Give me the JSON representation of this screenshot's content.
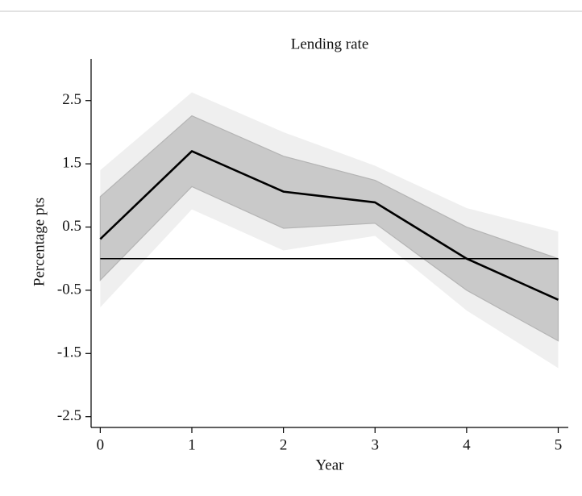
{
  "chart_data": {
    "type": "line",
    "title": "Lending rate",
    "x_label": "Year",
    "y_label": "Percentage pts",
    "x": [
      0,
      1,
      2,
      3,
      4,
      5
    ],
    "series": [
      {
        "color": "#000000",
        "values": [
          0.31,
          1.7,
          1.06,
          0.89,
          0,
          -0.65
        ]
      }
    ],
    "bands": [
      {
        "color": "#efefef",
        "lower": [
          -0.77,
          0.78,
          0.13,
          0.36,
          -0.82,
          -1.73
        ],
        "upper": [
          1.4,
          2.63,
          2.0,
          1.47,
          0.8,
          0.43
        ]
      },
      {
        "color": "#c9c9c9",
        "lower": [
          -0.34,
          1.14,
          0.48,
          0.56,
          -0.5,
          -1.3
        ],
        "upper": [
          0.98,
          2.26,
          1.62,
          1.24,
          0.5,
          0
        ]
      }
    ],
    "reference_line": 0,
    "xlim": [
      -0.1,
      5.11
    ],
    "ylim": [
      -2.67,
      3.16
    ],
    "xticks": [
      0,
      1,
      2,
      3,
      4,
      5
    ],
    "yticks": [
      2.5,
      1.5,
      0.5,
      -0.5,
      -1.5,
      -2.5
    ]
  }
}
